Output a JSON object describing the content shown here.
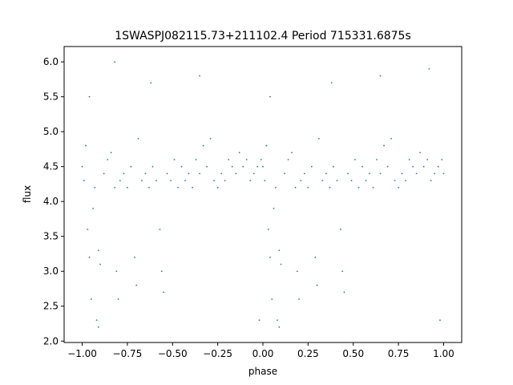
{
  "chart_data": {
    "type": "scatter",
    "title": "1SWASPJ082115.73+211102.4 Period 715331.6875s",
    "xlabel": "phase",
    "ylabel": "flux",
    "xlim": [
      -1.1,
      1.1
    ],
    "ylim": [
      1.98,
      6.22
    ],
    "xticks": [
      -1.0,
      -0.75,
      -0.5,
      -0.25,
      0.0,
      0.25,
      0.5,
      0.75,
      1.0
    ],
    "xtick_labels": [
      "−1.00",
      "−0.75",
      "−0.50",
      "−0.25",
      "0.00",
      "0.25",
      "0.50",
      "0.75",
      "1.00"
    ],
    "yticks": [
      2.0,
      2.5,
      3.0,
      3.5,
      4.0,
      4.5,
      5.0,
      5.5,
      6.0
    ],
    "ytick_labels": [
      "2.0",
      "2.5",
      "3.0",
      "3.5",
      "4.0",
      "4.5",
      "5.0",
      "5.5",
      "6.0"
    ],
    "grid": false,
    "marker_color": "#1f77b4",
    "series": [
      {
        "points": [
          [
            -1.0,
            4.5
          ],
          [
            -0.99,
            4.3
          ],
          [
            -0.98,
            4.8
          ],
          [
            -0.97,
            3.6
          ],
          [
            -0.96,
            3.2
          ],
          [
            -0.95,
            2.6
          ],
          [
            -0.94,
            3.9
          ],
          [
            -0.93,
            4.2
          ],
          [
            -0.92,
            2.3
          ],
          [
            -0.91,
            3.3
          ],
          [
            -0.9,
            3.1
          ],
          [
            -0.88,
            4.4
          ],
          [
            -0.86,
            4.6
          ],
          [
            -0.84,
            4.7
          ],
          [
            -0.82,
            4.2
          ],
          [
            -0.81,
            3.0
          ],
          [
            -0.8,
            2.6
          ],
          [
            -0.79,
            4.3
          ],
          [
            -0.77,
            4.4
          ],
          [
            -0.75,
            4.2
          ],
          [
            -0.73,
            4.5
          ],
          [
            -0.71,
            3.2
          ],
          [
            -0.7,
            2.8
          ],
          [
            -0.69,
            4.9
          ],
          [
            -0.67,
            4.3
          ],
          [
            -0.65,
            4.4
          ],
          [
            -0.63,
            4.2
          ],
          [
            -0.61,
            4.5
          ],
          [
            -0.59,
            4.3
          ],
          [
            -0.57,
            3.6
          ],
          [
            -0.56,
            3.0
          ],
          [
            -0.55,
            2.7
          ],
          [
            -0.53,
            4.4
          ],
          [
            -0.51,
            4.3
          ],
          [
            -0.49,
            4.6
          ],
          [
            -0.47,
            4.2
          ],
          [
            -0.45,
            4.5
          ],
          [
            -0.43,
            4.3
          ],
          [
            -0.41,
            4.4
          ],
          [
            -0.39,
            4.2
          ],
          [
            -0.37,
            4.6
          ],
          [
            -0.35,
            4.4
          ],
          [
            -0.33,
            4.8
          ],
          [
            -0.31,
            4.5
          ],
          [
            -0.29,
            4.9
          ],
          [
            -0.27,
            4.3
          ],
          [
            -0.25,
            4.2
          ],
          [
            -0.23,
            4.4
          ],
          [
            -0.21,
            4.3
          ],
          [
            -0.19,
            4.6
          ],
          [
            -0.17,
            4.5
          ],
          [
            -0.15,
            4.4
          ],
          [
            -0.13,
            4.7
          ],
          [
            -0.11,
            4.5
          ],
          [
            -0.09,
            4.6
          ],
          [
            -0.07,
            4.3
          ],
          [
            -0.05,
            4.4
          ],
          [
            -0.03,
            4.5
          ],
          [
            -0.01,
            4.6
          ],
          [
            0.0,
            4.5
          ],
          [
            0.01,
            4.3
          ],
          [
            0.02,
            4.8
          ],
          [
            0.03,
            3.6
          ],
          [
            0.04,
            3.2
          ],
          [
            0.05,
            2.6
          ],
          [
            0.06,
            3.9
          ],
          [
            0.07,
            4.2
          ],
          [
            0.08,
            2.3
          ],
          [
            0.09,
            3.3
          ],
          [
            0.1,
            3.1
          ],
          [
            0.12,
            4.4
          ],
          [
            0.14,
            4.6
          ],
          [
            0.16,
            4.7
          ],
          [
            0.18,
            4.2
          ],
          [
            0.19,
            3.0
          ],
          [
            0.2,
            2.6
          ],
          [
            0.21,
            4.3
          ],
          [
            0.23,
            4.4
          ],
          [
            0.25,
            4.2
          ],
          [
            0.27,
            4.5
          ],
          [
            0.29,
            3.2
          ],
          [
            0.3,
            2.8
          ],
          [
            0.31,
            4.9
          ],
          [
            0.33,
            4.3
          ],
          [
            0.35,
            4.4
          ],
          [
            0.37,
            4.2
          ],
          [
            0.39,
            4.5
          ],
          [
            0.41,
            4.3
          ],
          [
            0.43,
            3.6
          ],
          [
            0.44,
            3.0
          ],
          [
            0.45,
            2.7
          ],
          [
            0.47,
            4.4
          ],
          [
            0.49,
            4.3
          ],
          [
            0.51,
            4.6
          ],
          [
            0.53,
            4.2
          ],
          [
            0.55,
            4.5
          ],
          [
            0.57,
            4.3
          ],
          [
            0.59,
            4.4
          ],
          [
            0.61,
            4.2
          ],
          [
            0.63,
            4.6
          ],
          [
            0.65,
            4.4
          ],
          [
            0.67,
            4.8
          ],
          [
            0.69,
            4.5
          ],
          [
            0.71,
            4.9
          ],
          [
            0.73,
            4.3
          ],
          [
            0.75,
            4.2
          ],
          [
            0.77,
            4.4
          ],
          [
            0.79,
            4.3
          ],
          [
            0.81,
            4.6
          ],
          [
            0.83,
            4.5
          ],
          [
            0.85,
            4.4
          ],
          [
            0.87,
            4.7
          ],
          [
            0.89,
            4.5
          ],
          [
            0.91,
            4.6
          ],
          [
            0.93,
            4.3
          ],
          [
            0.95,
            4.4
          ],
          [
            0.97,
            4.5
          ],
          [
            0.99,
            4.6
          ],
          [
            1.0,
            4.4
          ],
          [
            -0.96,
            5.5
          ],
          [
            -0.62,
            5.7
          ],
          [
            -0.35,
            5.8
          ],
          [
            -0.82,
            6.0
          ],
          [
            0.04,
            5.5
          ],
          [
            0.38,
            5.7
          ],
          [
            0.65,
            5.8
          ],
          [
            0.92,
            5.9
          ],
          [
            -0.91,
            2.2
          ],
          [
            0.09,
            2.2
          ],
          [
            -0.02,
            2.3
          ],
          [
            0.98,
            2.3
          ]
        ]
      }
    ]
  }
}
